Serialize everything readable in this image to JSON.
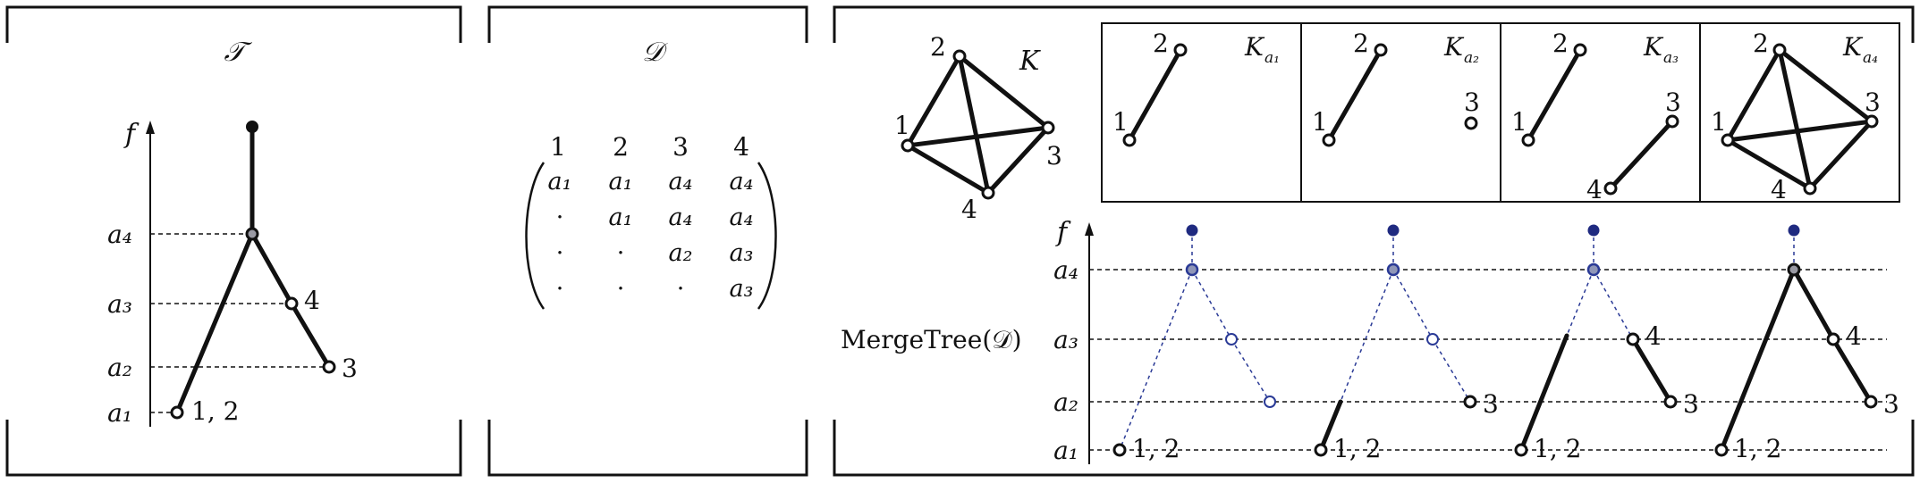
{
  "panel_T": {
    "title": "𝒯",
    "axis_label": "f",
    "levels": [
      "a₄",
      "a₃",
      "a₂",
      "a₁"
    ],
    "leaf_labels": [
      "4",
      "3",
      "1, 2"
    ]
  },
  "panel_D": {
    "title": "𝒟",
    "col_headers": [
      "1",
      "2",
      "3",
      "4"
    ],
    "rows": [
      [
        "a₁",
        "a₁",
        "a₄",
        "a₄"
      ],
      [
        "·",
        "a₁",
        "a₄",
        "a₄"
      ],
      [
        "·",
        "·",
        "a₂",
        "a₃"
      ],
      [
        "·",
        "·",
        "·",
        "a₃"
      ]
    ]
  },
  "panel_K": {
    "graph_label": "K",
    "vertex_labels": [
      "1",
      "2",
      "3",
      "4"
    ],
    "sub_labels": [
      "K",
      "K",
      "K",
      "K"
    ],
    "sub_subscripts": [
      "a₁",
      "a₂",
      "a₃",
      "a₄"
    ],
    "merge_label": "MergeTree(𝒟)",
    "axis_label": "f",
    "levels": [
      "a₄",
      "a₃",
      "a₂",
      "a₁"
    ],
    "tree_labels": [
      "1, 2",
      "3",
      "4"
    ]
  }
}
